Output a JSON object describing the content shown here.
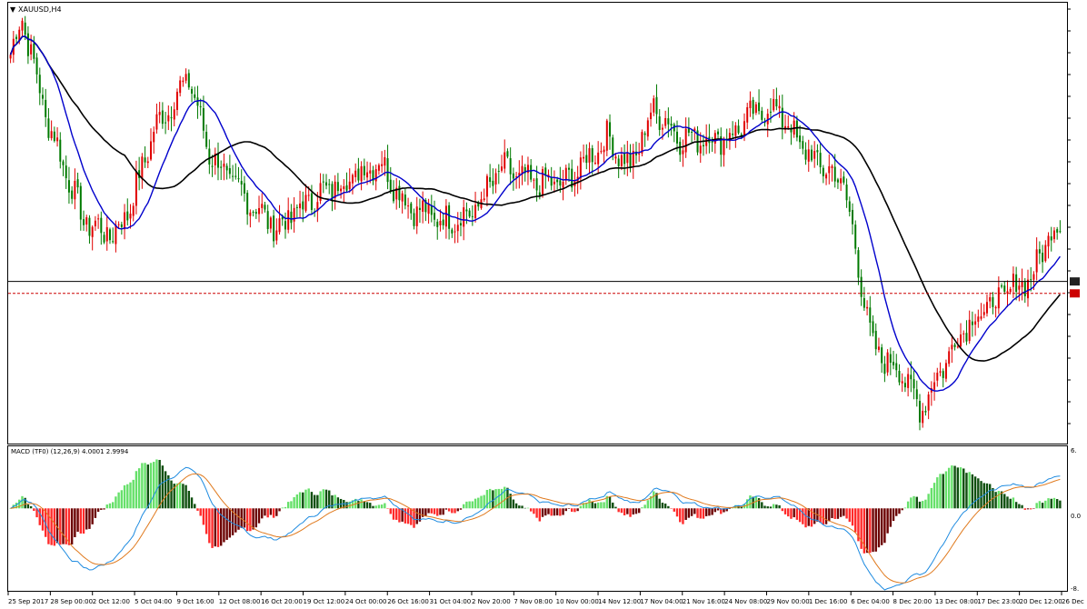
{
  "window": {
    "symbol_label": "XAUUSD,H4",
    "macd_label": "MACD (TF0) (12,26,9) 4.0001 2.9994",
    "macd_ticks": [
      "6.",
      "0.0",
      "-8."
    ],
    "menu_arrow": "▼"
  },
  "colors": {
    "bull": "#e00000",
    "bear": "#007a00",
    "ma_fast": "#0000cc",
    "ma_slow": "#000000",
    "hline": "#000000",
    "dashed": "#cc0000",
    "hist_pos_light": "#66e06a",
    "hist_pos_dark": "#0e4f0e",
    "hist_neg_light": "#ff2a2a",
    "hist_neg_dark": "#6b0000",
    "macd_line": "#1e8be0",
    "signal_line": "#e07a1e"
  },
  "chart_data": {
    "type": "candlestick",
    "symbol": "XAUUSD",
    "timeframe": "H4",
    "x_tick_labels": [
      "25 Sep 2017",
      "28 Sep 00:00",
      "2 Oct 12:00",
      "5 Oct 04:00",
      "9 Oct 16:00",
      "12 Oct 08:00",
      "16 Oct 20:00",
      "19 Oct 12:00",
      "24 Oct 00:00",
      "26 Oct 16:00",
      "31 Oct 04:00",
      "2 Nov 20:00",
      "7 Nov 08:00",
      "10 Nov 00:00",
      "14 Nov 12:00",
      "17 Nov 04:00",
      "21 Nov 16:00",
      "24 Nov 08:00",
      "29 Nov 00:00",
      "1 Dec 16:00",
      "6 Dec 04:00",
      "8 Dec 20:00",
      "13 Dec 08:00",
      "17 Dec 23:00",
      "20 Dec 12:00",
      "26 Dec"
    ],
    "price_path_anchors": [
      [
        0,
        1300
      ],
      [
        4,
        1305
      ],
      [
        12,
        1292
      ],
      [
        25,
        1278
      ],
      [
        35,
        1276
      ],
      [
        41,
        1280
      ],
      [
        49,
        1290
      ],
      [
        61,
        1297
      ],
      [
        68,
        1287
      ],
      [
        78,
        1282
      ],
      [
        91,
        1277
      ],
      [
        103,
        1281
      ],
      [
        118,
        1284
      ],
      [
        126,
        1286
      ],
      [
        136,
        1280
      ],
      [
        148,
        1278
      ],
      [
        158,
        1279
      ],
      [
        168,
        1285
      ],
      [
        178,
        1283
      ],
      [
        190,
        1283
      ],
      [
        204,
        1289
      ],
      [
        212,
        1285
      ],
      [
        220,
        1293
      ],
      [
        229,
        1289
      ],
      [
        245,
        1289
      ],
      [
        254,
        1292
      ],
      [
        262,
        1293
      ],
      [
        272,
        1287
      ],
      [
        285,
        1283
      ],
      [
        295,
        1261
      ],
      [
        305,
        1258
      ],
      [
        311,
        1253
      ],
      [
        326,
        1264
      ],
      [
        339,
        1268
      ],
      [
        350,
        1271
      ],
      [
        356,
        1277
      ]
    ],
    "overlays": [
      "moving_average_fast",
      "moving_average_slow"
    ],
    "horizontal_lines": [
      "solid",
      "dashed"
    ],
    "indicator": {
      "name": "MACD",
      "params": [
        12,
        26,
        9
      ],
      "main": 4.0001,
      "signal": 2.9994,
      "ylim": [
        -8,
        6
      ]
    }
  }
}
